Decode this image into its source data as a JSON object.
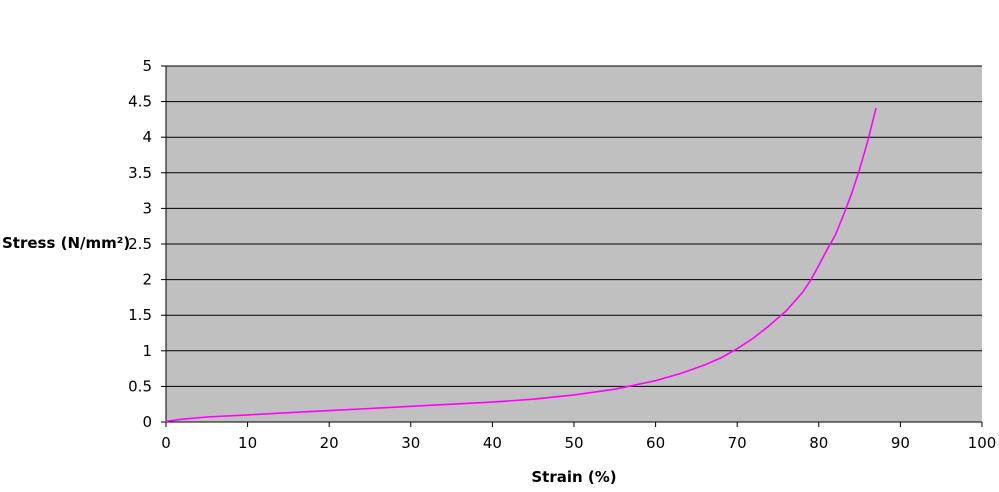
{
  "chart_data": {
    "type": "line",
    "title": "",
    "xlabel": "Strain (%)",
    "ylabel": "Stress (N/mm²)",
    "xlim": [
      0,
      100
    ],
    "ylim": [
      0,
      5
    ],
    "xticks": [
      "0",
      "10",
      "20",
      "30",
      "40",
      "50",
      "60",
      "70",
      "80",
      "90",
      "100"
    ],
    "yticks": [
      "0",
      "0.5",
      "1",
      "1.5",
      "2",
      "2.5",
      "3",
      "3.5",
      "4",
      "4.5",
      "5"
    ],
    "grid": "horizontal",
    "legend": "none",
    "colors": {
      "plot_background": "#c0c0c0",
      "series": "#ff00ff",
      "gridline": "#000000"
    },
    "series": [
      {
        "x": [
          0,
          2,
          5,
          10,
          15,
          20,
          25,
          30,
          35,
          40,
          45,
          50,
          55,
          60,
          63,
          66,
          68,
          70,
          72,
          74,
          76,
          78,
          79,
          80,
          81,
          82,
          83,
          84,
          85,
          86,
          87
        ],
        "y": [
          0.01,
          0.04,
          0.07,
          0.1,
          0.13,
          0.16,
          0.19,
          0.22,
          0.25,
          0.28,
          0.32,
          0.38,
          0.46,
          0.58,
          0.68,
          0.8,
          0.9,
          1.03,
          1.18,
          1.36,
          1.56,
          1.82,
          1.99,
          2.2,
          2.42,
          2.62,
          2.9,
          3.2,
          3.55,
          3.95,
          4.4
        ]
      }
    ]
  }
}
